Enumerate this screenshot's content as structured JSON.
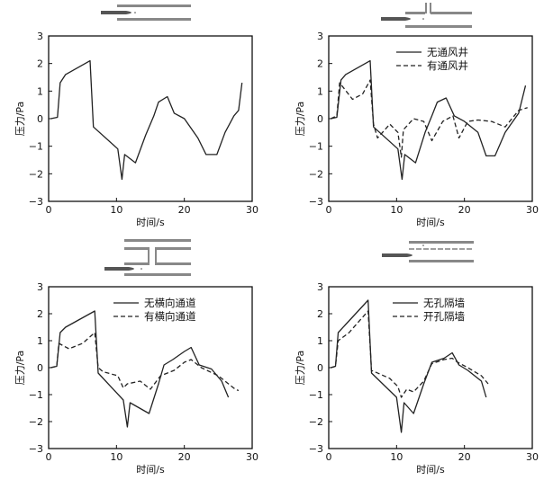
{
  "chart_data": [
    {
      "type": "line",
      "xlabel": "时间/s",
      "ylabel": "压力/Pa",
      "xlim": [
        0,
        30
      ],
      "ylim": [
        -3,
        3
      ],
      "xticks": [
        0,
        10,
        20,
        30
      ],
      "yticks": [
        3,
        2,
        1,
        0,
        -1,
        -2,
        -3
      ],
      "legend": null,
      "inset": "tunnel-plain",
      "series": [
        {
          "name": "",
          "style": "solid",
          "points": [
            [
              0.3,
              0
            ],
            [
              1.3,
              0.05
            ],
            [
              1.7,
              1.3
            ],
            [
              2.5,
              1.6
            ],
            [
              6.1,
              2.1
            ],
            [
              6.6,
              -0.3
            ],
            [
              10.2,
              -1.1
            ],
            [
              10.8,
              -2.2
            ],
            [
              11.2,
              -1.3
            ],
            [
              12.8,
              -1.6
            ],
            [
              14.3,
              -0.6
            ],
            [
              15.5,
              0.1
            ],
            [
              16.2,
              0.6
            ],
            [
              17.5,
              0.8
            ],
            [
              18.5,
              0.2
            ],
            [
              20,
              0
            ],
            [
              22,
              -0.7
            ],
            [
              23.2,
              -1.3
            ],
            [
              24.8,
              -1.3
            ],
            [
              26,
              -0.5
            ],
            [
              27.3,
              0.1
            ],
            [
              28,
              0.3
            ],
            [
              28.5,
              1.3
            ]
          ]
        }
      ]
    },
    {
      "type": "line",
      "xlabel": "时间/s",
      "ylabel": "压力/Pa",
      "xlim": [
        0,
        30
      ],
      "ylim": [
        -3,
        3
      ],
      "xticks": [
        0,
        10,
        20,
        30
      ],
      "yticks": [
        3,
        2,
        1,
        0,
        -1,
        -2,
        -3
      ],
      "legend": "top-right",
      "inset": "tunnel-shaft",
      "series": [
        {
          "name": "无通风井",
          "style": "solid",
          "points": [
            [
              0.3,
              0
            ],
            [
              1.2,
              0.05
            ],
            [
              1.8,
              1.4
            ],
            [
              2.5,
              1.6
            ],
            [
              6.1,
              2.1
            ],
            [
              6.6,
              -0.3
            ],
            [
              10.2,
              -1.1
            ],
            [
              10.8,
              -2.2
            ],
            [
              11.2,
              -1.3
            ],
            [
              12.8,
              -1.6
            ],
            [
              14.2,
              -0.5
            ],
            [
              15.2,
              0.1
            ],
            [
              16,
              0.6
            ],
            [
              17.3,
              0.75
            ],
            [
              18.5,
              0.1
            ],
            [
              20,
              -0.1
            ],
            [
              22,
              -0.5
            ],
            [
              23.2,
              -1.35
            ],
            [
              24.5,
              -1.35
            ],
            [
              26,
              -0.5
            ],
            [
              28,
              0.2
            ],
            [
              29,
              1.2
            ]
          ]
        },
        {
          "name": "有通风井",
          "style": "dashed",
          "points": [
            [
              0.3,
              0
            ],
            [
              1.2,
              0.1
            ],
            [
              1.6,
              1.3
            ],
            [
              3.5,
              0.7
            ],
            [
              5,
              0.9
            ],
            [
              6.1,
              1.4
            ],
            [
              6.6,
              -0.2
            ],
            [
              7.2,
              -0.7
            ],
            [
              9,
              -0.2
            ],
            [
              10.2,
              -0.5
            ],
            [
              10.7,
              -1.4
            ],
            [
              11,
              -0.4
            ],
            [
              12.5,
              0
            ],
            [
              14,
              -0.1
            ],
            [
              15.2,
              -0.8
            ],
            [
              16.8,
              -0.1
            ],
            [
              18.3,
              0.1
            ],
            [
              19.2,
              -0.7
            ],
            [
              20.5,
              -0.1
            ],
            [
              22,
              -0.05
            ],
            [
              24,
              -0.1
            ],
            [
              26,
              -0.3
            ],
            [
              28,
              0.3
            ],
            [
              29.3,
              0.4
            ]
          ]
        }
      ]
    },
    {
      "type": "line",
      "xlabel": "时间/s",
      "ylabel": "压力/Pa",
      "xlim": [
        0,
        30
      ],
      "ylim": [
        -3,
        3
      ],
      "xticks": [
        0,
        10,
        20,
        30
      ],
      "yticks": [
        3,
        2,
        1,
        0,
        -1,
        -2,
        -3
      ],
      "legend": "top-right",
      "inset": "tunnel-cross-passage",
      "series": [
        {
          "name": "无横向通道",
          "style": "solid",
          "points": [
            [
              0.3,
              0
            ],
            [
              1.2,
              0.05
            ],
            [
              1.7,
              1.3
            ],
            [
              2.5,
              1.5
            ],
            [
              6.8,
              2.1
            ],
            [
              7.3,
              -0.2
            ],
            [
              11,
              -1.2
            ],
            [
              11.6,
              -2.2
            ],
            [
              12,
              -1.3
            ],
            [
              14.8,
              -1.7
            ],
            [
              16.2,
              -0.6
            ],
            [
              17,
              0.1
            ],
            [
              18.3,
              0.3
            ],
            [
              20,
              0.6
            ],
            [
              21,
              0.75
            ],
            [
              22.2,
              0.1
            ],
            [
              24,
              -0.05
            ],
            [
              25.5,
              -0.5
            ],
            [
              26.5,
              -1.1
            ]
          ]
        },
        {
          "name": "有横向通道",
          "style": "dashed",
          "points": [
            [
              0.3,
              0
            ],
            [
              1.2,
              0.05
            ],
            [
              1.5,
              0.9
            ],
            [
              3,
              0.7
            ],
            [
              5,
              0.9
            ],
            [
              6.8,
              1.3
            ],
            [
              7.3,
              0
            ],
            [
              8,
              -0.15
            ],
            [
              10.2,
              -0.3
            ],
            [
              11,
              -0.75
            ],
            [
              11.6,
              -0.6
            ],
            [
              13.5,
              -0.5
            ],
            [
              15,
              -0.8
            ],
            [
              16.5,
              -0.3
            ],
            [
              18.5,
              -0.1
            ],
            [
              20,
              0.2
            ],
            [
              21,
              0.3
            ],
            [
              22.5,
              0
            ],
            [
              25,
              -0.3
            ],
            [
              26.5,
              -0.6
            ],
            [
              27.5,
              -0.8
            ],
            [
              28,
              -0.85
            ]
          ]
        }
      ]
    },
    {
      "type": "line",
      "xlabel": "时间/s",
      "ylabel": "压力/Pa",
      "xlim": [
        0,
        30
      ],
      "ylim": [
        -3,
        3
      ],
      "xticks": [
        0,
        10,
        20,
        30
      ],
      "yticks": [
        3,
        2,
        1,
        0,
        -1,
        -2,
        -3
      ],
      "legend": "top-right",
      "inset": "tunnel-partition",
      "series": [
        {
          "name": "无孔隔墙",
          "style": "solid",
          "points": [
            [
              0.3,
              0
            ],
            [
              1,
              0.05
            ],
            [
              1.4,
              1.3
            ],
            [
              2.5,
              1.6
            ],
            [
              5.8,
              2.5
            ],
            [
              6.3,
              -0.2
            ],
            [
              10,
              -1.1
            ],
            [
              10.7,
              -2.4
            ],
            [
              11.1,
              -1.3
            ],
            [
              12.5,
              -1.7
            ],
            [
              14,
              -0.6
            ],
            [
              15.2,
              0.2
            ],
            [
              17,
              0.35
            ],
            [
              18.2,
              0.55
            ],
            [
              19.2,
              0.1
            ],
            [
              20.5,
              -0.1
            ],
            [
              22.5,
              -0.5
            ],
            [
              23.2,
              -1.1
            ]
          ]
        },
        {
          "name": "开孔隔墙",
          "style": "dashed",
          "points": [
            [
              0.3,
              0
            ],
            [
              1,
              0.05
            ],
            [
              1.4,
              1
            ],
            [
              3,
              1.3
            ],
            [
              5.8,
              2.1
            ],
            [
              6.3,
              -0.1
            ],
            [
              9,
              -0.4
            ],
            [
              10.2,
              -0.7
            ],
            [
              10.7,
              -1.1
            ],
            [
              11.5,
              -0.8
            ],
            [
              12.5,
              -0.9
            ],
            [
              14,
              -0.5
            ],
            [
              15.2,
              0.15
            ],
            [
              17,
              0.3
            ],
            [
              18.2,
              0.35
            ],
            [
              19,
              0.2
            ],
            [
              20.5,
              0
            ],
            [
              22.5,
              -0.3
            ],
            [
              23.5,
              -0.6
            ]
          ]
        }
      ]
    }
  ]
}
